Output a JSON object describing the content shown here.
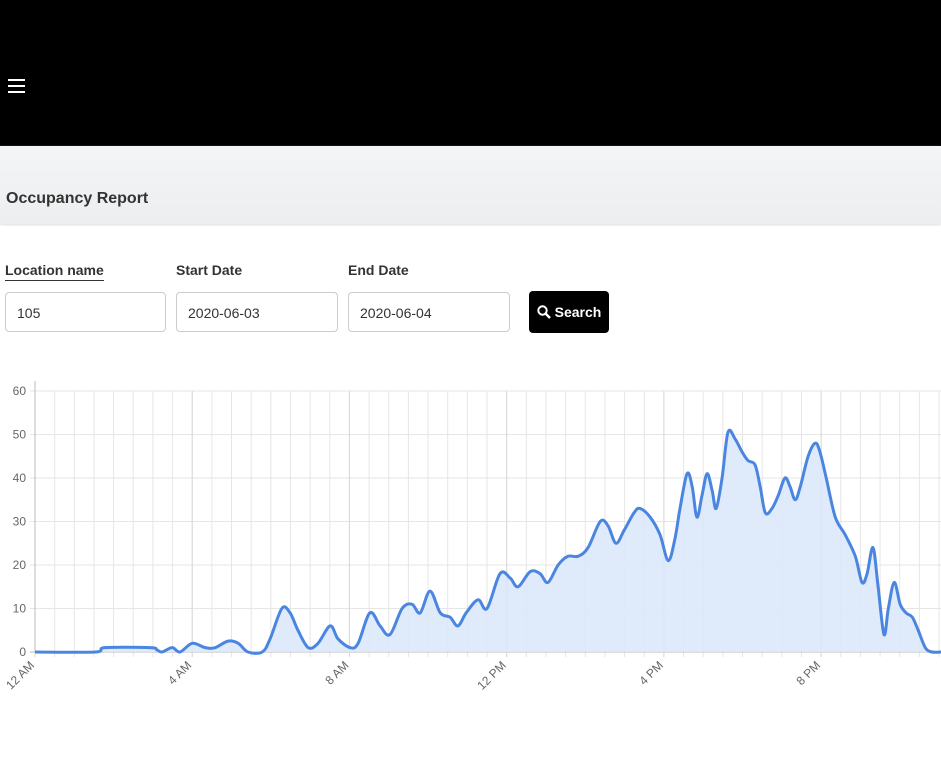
{
  "page": {
    "title": "Occupancy Report",
    "form": {
      "fields": [
        {
          "label": "Location name",
          "value": "105"
        },
        {
          "label": "Start Date",
          "value": "2020-06-03"
        },
        {
          "label": "End Date",
          "value": "2020-06-04"
        }
      ],
      "button": "Search"
    }
  },
  "chart_data": {
    "type": "area",
    "color": "#4a86e0",
    "fill": "#dce8fb",
    "grid": true,
    "x": [
      0,
      1.53,
      1.78,
      2.93,
      3.1,
      3.23,
      3.49,
      3.69,
      4.0,
      4.33,
      4.58,
      4.91,
      5.17,
      5.42,
      5.78,
      5.98,
      6.28,
      6.49,
      6.69,
      6.95,
      7.2,
      7.51,
      7.71,
      8.02,
      8.22,
      8.52,
      8.78,
      9.03,
      9.34,
      9.59,
      9.8,
      10.05,
      10.31,
      10.56,
      10.76,
      10.97,
      11.27,
      11.5,
      11.83,
      12.09,
      12.29,
      12.6,
      12.85,
      13.05,
      13.31,
      13.56,
      13.82,
      14.07,
      14.38,
      14.58,
      14.78,
      14.99,
      15.24,
      15.39,
      15.65,
      15.9,
      16.11,
      16.28,
      16.41,
      16.59,
      16.72,
      16.84,
      16.97,
      17.1,
      17.23,
      17.33,
      17.48,
      17.63,
      17.81,
      17.99,
      18.14,
      18.32,
      18.45,
      18.58,
      18.75,
      18.91,
      19.08,
      19.21,
      19.34,
      19.47,
      19.67,
      19.85,
      19.97,
      20.13,
      20.36,
      20.61,
      20.87,
      21.04,
      21.17,
      21.32,
      21.45,
      21.6,
      21.71,
      21.86,
      22.01,
      22.16,
      22.32,
      22.47,
      22.65,
      22.82,
      23.05
    ],
    "values": [
      0,
      0,
      1,
      1,
      0.5,
      0,
      1,
      0,
      2,
      1,
      1,
      2.5,
      2,
      0,
      0,
      3,
      10,
      9,
      5,
      1,
      2,
      6,
      3,
      1,
      2,
      9,
      6,
      4,
      10,
      11,
      9,
      14,
      9,
      8,
      6,
      9,
      12,
      10,
      18,
      17,
      15,
      18.5,
      18,
      16,
      20,
      22,
      22,
      24,
      30,
      29,
      25,
      28,
      32,
      33,
      31,
      27,
      21,
      26,
      33,
      41,
      38,
      31,
      36,
      41,
      37,
      33,
      40,
      50.5,
      49,
      46,
      44,
      43,
      38,
      32,
      33,
      36,
      40,
      38,
      35,
      38,
      45,
      48,
      46,
      40,
      31,
      27,
      22,
      16,
      18,
      24,
      15,
      4,
      10,
      16,
      11,
      9,
      8,
      5,
      1,
      0,
      0
    ],
    "xlim": [
      0,
      23.05
    ],
    "xticks": [
      {
        "value": 0,
        "label": "12 AM"
      },
      {
        "value": 4,
        "label": "4 AM"
      },
      {
        "value": 8,
        "label": "8 AM"
      },
      {
        "value": 12,
        "label": "12 PM"
      },
      {
        "value": 16,
        "label": "4 PM"
      },
      {
        "value": 20,
        "label": "8 PM"
      }
    ],
    "ylim": [
      0,
      60
    ],
    "yticks": [
      0,
      10,
      20,
      30,
      40,
      50,
      60
    ]
  }
}
